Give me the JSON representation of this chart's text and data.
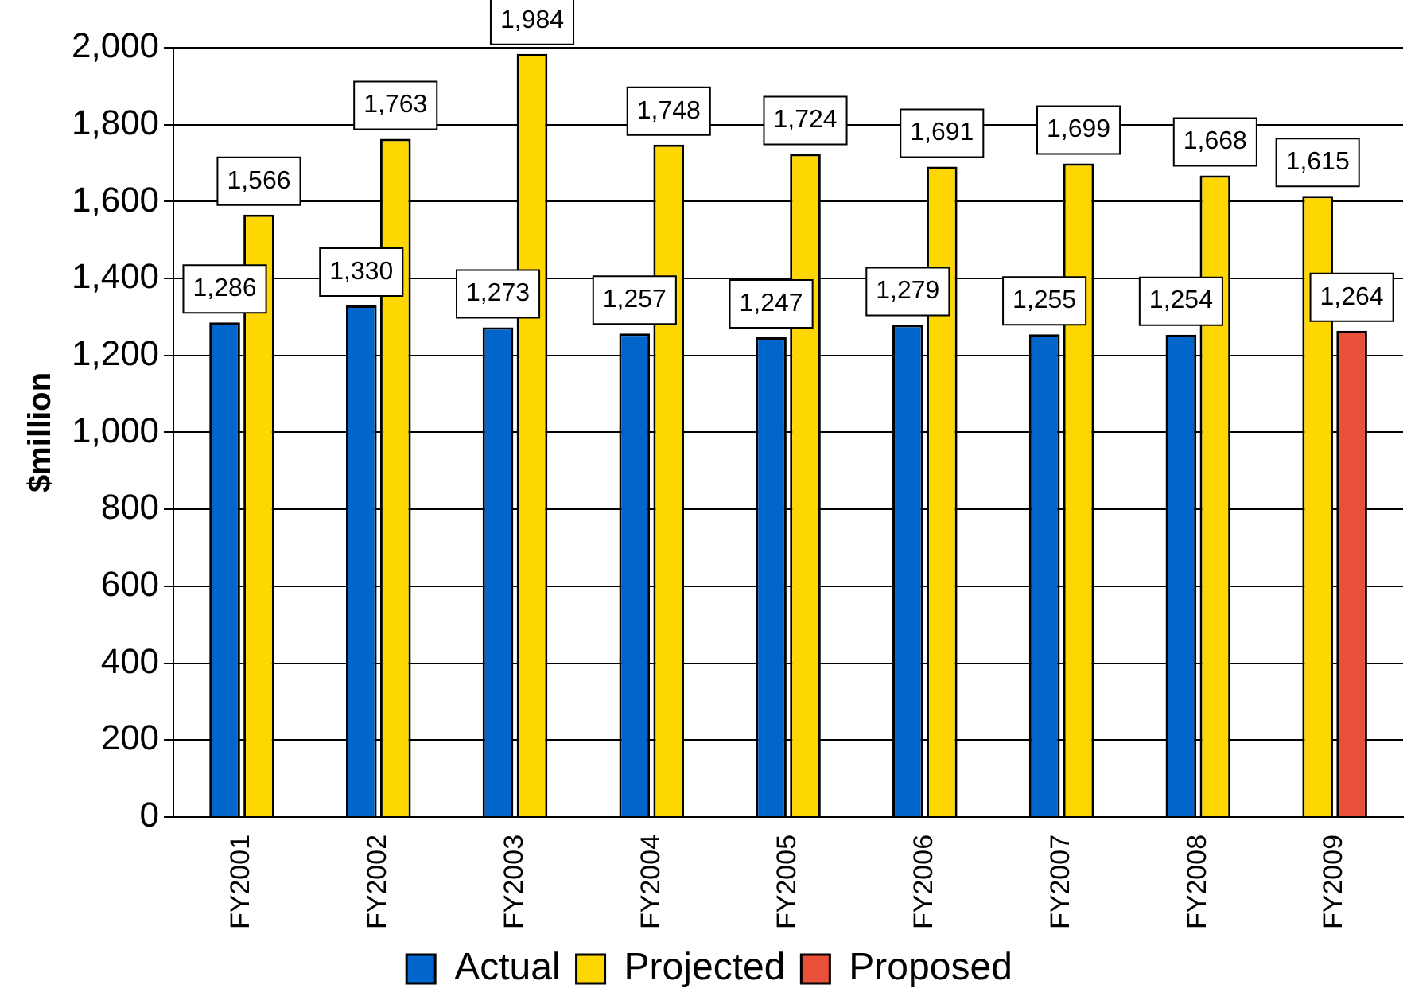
{
  "chart_data": {
    "type": "bar",
    "ylabel": "$million",
    "categories": [
      "FY2001",
      "FY2002",
      "FY2003",
      "FY2004",
      "FY2005",
      "FY2006",
      "FY2007",
      "FY2008",
      "FY2009"
    ],
    "series": [
      {
        "name": "Actual",
        "color": "#0066cc",
        "values": [
          1286,
          1330,
          1273,
          1257,
          1247,
          1279,
          1255,
          1254,
          null
        ],
        "value_labels": [
          "1,286",
          "1,330",
          "1,273",
          "1,257",
          "1,247",
          "1,279",
          "1,255",
          "1,254",
          null
        ]
      },
      {
        "name": "Projected",
        "color": "#ffd700",
        "values": [
          1566,
          1763,
          1984,
          1748,
          1724,
          1691,
          1699,
          1668,
          1615
        ],
        "value_labels": [
          "1,566",
          "1,763",
          "1,984",
          "1,748",
          "1,724",
          "1,691",
          "1,699",
          "1,668",
          "1,615"
        ]
      },
      {
        "name": "Proposed",
        "color": "#e8503a",
        "values": [
          null,
          null,
          null,
          null,
          null,
          null,
          null,
          null,
          1264
        ],
        "value_labels": [
          null,
          null,
          null,
          null,
          null,
          null,
          null,
          null,
          "1,264"
        ]
      }
    ],
    "ylim": [
      0,
      2000
    ],
    "yticks": [
      {
        "value": 0,
        "label": "0"
      },
      {
        "value": 200,
        "label": "200"
      },
      {
        "value": 400,
        "label": "400"
      },
      {
        "value": 600,
        "label": "600"
      },
      {
        "value": 800,
        "label": "800"
      },
      {
        "value": 1000,
        "label": "1,000"
      },
      {
        "value": 1200,
        "label": "1,200"
      },
      {
        "value": 1400,
        "label": "1,400"
      },
      {
        "value": 1600,
        "label": "1,600"
      },
      {
        "value": 1800,
        "label": "1,800"
      },
      {
        "value": 2000,
        "label": "2,000"
      }
    ],
    "grid": "y",
    "legend": "bottom"
  }
}
